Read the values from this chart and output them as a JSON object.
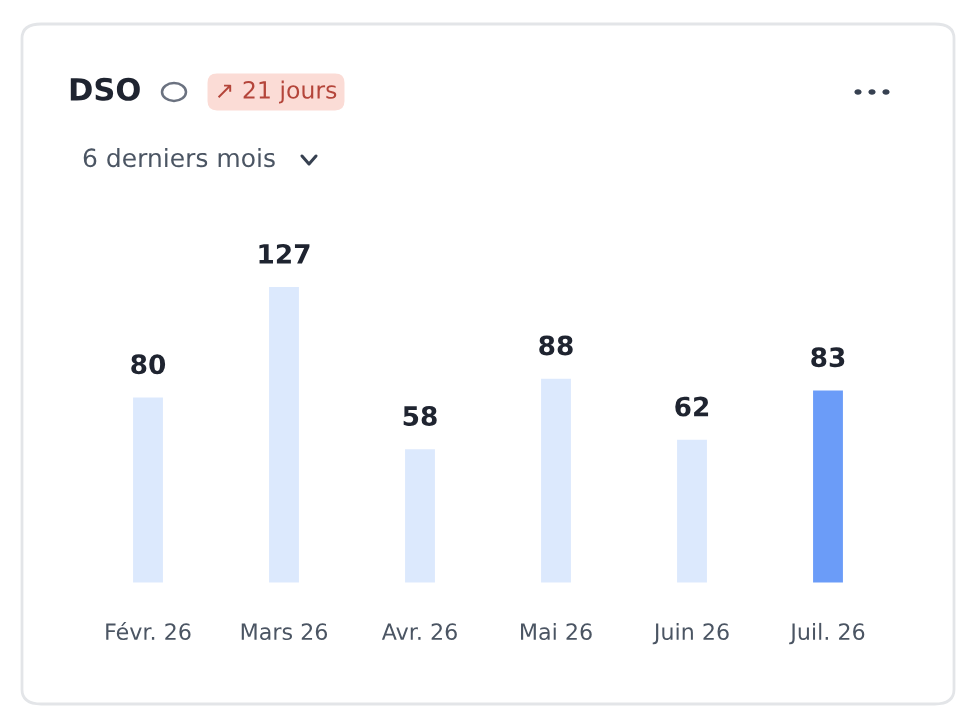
{
  "chart_data": {
    "type": "bar",
    "title": "DSO",
    "annotations": [
      "↗ 21 jours",
      "6 derniers mois"
    ],
    "categories": [
      "Févr. 26",
      "Mars 26",
      "Avr. 26",
      "Mai 26",
      "Juin 26",
      "Juil. 26"
    ],
    "values": [
      80,
      127,
      58,
      88,
      62,
      83
    ],
    "colors": [
      "#dce9fd",
      "#dce9fd",
      "#dce9fd",
      "#dce9fd",
      "#dce9fd",
      "#6b9cf8"
    ],
    "data_labels": true,
    "grid": false,
    "legend": false
  }
}
